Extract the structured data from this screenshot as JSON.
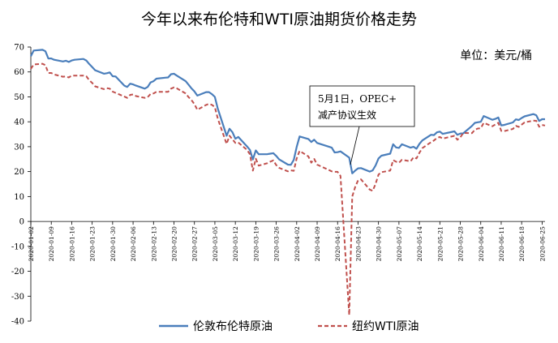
{
  "chart_data": {
    "type": "line",
    "title": "今年以来布伦特和WTI原油期货价格走势",
    "unit_label": "单位：美元/桶",
    "annotation": [
      "5月1日，OPEC+",
      "减产协议生效"
    ],
    "ylim": [
      -40,
      70
    ],
    "yticks": [
      70,
      60,
      50,
      40,
      30,
      20,
      10,
      0,
      -10,
      -20,
      -30,
      -40
    ],
    "x_tick_labels": [
      "2020-01-02",
      "2020-01-09",
      "2020-01-16",
      "2020-01-23",
      "2020-01-30",
      "2020-02-06",
      "2020-02-13",
      "2020-02-20",
      "2020-02-27",
      "2020-03-05",
      "2020-03-12",
      "2020-03-19",
      "2020-03-26",
      "2020-04-02",
      "2020-04-09",
      "2020-04-16",
      "2020-04-23",
      "2020-04-30",
      "2020-05-07",
      "2020-05-14",
      "2020-05-21",
      "2020-05-28",
      "2020-06-04",
      "2020-06-11",
      "2020-06-18",
      "2020-06-25"
    ],
    "grid": false,
    "legend_position": "bottom",
    "colors": {
      "brent": "#4A7EBB",
      "wti": "#C0504D"
    },
    "series": [
      {
        "name": "伦敦布伦特原油",
        "points": [
          [
            "2020-01-02",
            66.3
          ],
          [
            "2020-01-03",
            68.6
          ],
          [
            "2020-01-06",
            68.9
          ],
          [
            "2020-01-07",
            68.3
          ],
          [
            "2020-01-08",
            65.4
          ],
          [
            "2020-01-09",
            65.4
          ],
          [
            "2020-01-10",
            64.9
          ],
          [
            "2020-01-13",
            64.2
          ],
          [
            "2020-01-14",
            64.5
          ],
          [
            "2020-01-15",
            64.0
          ],
          [
            "2020-01-16",
            64.6
          ],
          [
            "2020-01-17",
            64.9
          ],
          [
            "2020-01-20",
            65.2
          ],
          [
            "2020-01-21",
            64.6
          ],
          [
            "2020-01-22",
            63.2
          ],
          [
            "2020-01-23",
            62.0
          ],
          [
            "2020-01-24",
            60.7
          ],
          [
            "2020-01-27",
            59.3
          ],
          [
            "2020-01-28",
            59.5
          ],
          [
            "2020-01-29",
            59.8
          ],
          [
            "2020-01-30",
            58.3
          ],
          [
            "2020-01-31",
            58.2
          ],
          [
            "2020-02-03",
            54.5
          ],
          [
            "2020-02-04",
            54.0
          ],
          [
            "2020-02-05",
            55.3
          ],
          [
            "2020-02-06",
            55.0
          ],
          [
            "2020-02-07",
            54.5
          ],
          [
            "2020-02-10",
            53.3
          ],
          [
            "2020-02-11",
            54.0
          ],
          [
            "2020-02-12",
            55.8
          ],
          [
            "2020-02-13",
            56.3
          ],
          [
            "2020-02-14",
            57.3
          ],
          [
            "2020-02-17",
            57.7
          ],
          [
            "2020-02-18",
            57.8
          ],
          [
            "2020-02-19",
            59.1
          ],
          [
            "2020-02-20",
            59.3
          ],
          [
            "2020-02-21",
            58.5
          ],
          [
            "2020-02-24",
            56.3
          ],
          [
            "2020-02-25",
            54.9
          ],
          [
            "2020-02-26",
            53.4
          ],
          [
            "2020-02-27",
            52.2
          ],
          [
            "2020-02-28",
            50.5
          ],
          [
            "2020-03-02",
            51.9
          ],
          [
            "2020-03-03",
            51.9
          ],
          [
            "2020-03-04",
            51.1
          ],
          [
            "2020-03-05",
            49.99
          ],
          [
            "2020-03-06",
            45.3
          ],
          [
            "2020-03-09",
            34.4
          ],
          [
            "2020-03-10",
            37.2
          ],
          [
            "2020-03-11",
            35.8
          ],
          [
            "2020-03-12",
            33.2
          ],
          [
            "2020-03-13",
            33.9
          ],
          [
            "2020-03-16",
            30.1
          ],
          [
            "2020-03-17",
            28.7
          ],
          [
            "2020-03-18",
            24.9
          ],
          [
            "2020-03-19",
            28.5
          ],
          [
            "2020-03-20",
            26.98
          ],
          [
            "2020-03-23",
            27.0
          ],
          [
            "2020-03-24",
            27.2
          ],
          [
            "2020-03-25",
            27.4
          ],
          [
            "2020-03-26",
            26.3
          ],
          [
            "2020-03-27",
            24.9
          ],
          [
            "2020-03-30",
            22.8
          ],
          [
            "2020-03-31",
            22.7
          ],
          [
            "2020-04-01",
            24.7
          ],
          [
            "2020-04-02",
            29.9
          ],
          [
            "2020-04-03",
            34.1
          ],
          [
            "2020-04-06",
            33.1
          ],
          [
            "2020-04-07",
            31.9
          ],
          [
            "2020-04-08",
            32.8
          ],
          [
            "2020-04-09",
            31.5
          ],
          [
            "2020-04-14",
            29.6
          ],
          [
            "2020-04-15",
            27.7
          ],
          [
            "2020-04-16",
            27.8
          ],
          [
            "2020-04-17",
            28.1
          ],
          [
            "2020-04-20",
            25.6
          ],
          [
            "2020-04-21",
            19.3
          ],
          [
            "2020-04-22",
            20.4
          ],
          [
            "2020-04-23",
            21.3
          ],
          [
            "2020-04-24",
            21.4
          ],
          [
            "2020-04-27",
            20.0
          ],
          [
            "2020-04-28",
            20.5
          ],
          [
            "2020-04-29",
            22.5
          ],
          [
            "2020-04-30",
            25.3
          ],
          [
            "2020-05-01",
            26.4
          ],
          [
            "2020-05-04",
            27.2
          ],
          [
            "2020-05-05",
            30.97
          ],
          [
            "2020-05-06",
            29.7
          ],
          [
            "2020-05-07",
            29.5
          ],
          [
            "2020-05-08",
            30.97
          ],
          [
            "2020-05-11",
            29.6
          ],
          [
            "2020-05-12",
            29.98
          ],
          [
            "2020-05-13",
            29.2
          ],
          [
            "2020-05-14",
            31.1
          ],
          [
            "2020-05-15",
            32.5
          ],
          [
            "2020-05-18",
            34.8
          ],
          [
            "2020-05-19",
            34.65
          ],
          [
            "2020-05-20",
            35.75
          ],
          [
            "2020-05-21",
            36.06
          ],
          [
            "2020-05-22",
            35.13
          ],
          [
            "2020-05-26",
            36.17
          ],
          [
            "2020-05-27",
            34.74
          ],
          [
            "2020-05-28",
            35.29
          ],
          [
            "2020-05-29",
            35.33
          ],
          [
            "2020-06-01",
            38.32
          ],
          [
            "2020-06-02",
            39.57
          ],
          [
            "2020-06-03",
            39.79
          ],
          [
            "2020-06-04",
            39.99
          ],
          [
            "2020-06-05",
            42.3
          ],
          [
            "2020-06-08",
            40.8
          ],
          [
            "2020-06-09",
            41.18
          ],
          [
            "2020-06-10",
            41.73
          ],
          [
            "2020-06-11",
            38.55
          ],
          [
            "2020-06-12",
            38.73
          ],
          [
            "2020-06-15",
            39.72
          ],
          [
            "2020-06-16",
            40.96
          ],
          [
            "2020-06-17",
            40.71
          ],
          [
            "2020-06-18",
            41.51
          ],
          [
            "2020-06-19",
            42.19
          ],
          [
            "2020-06-22",
            43.08
          ],
          [
            "2020-06-23",
            42.63
          ],
          [
            "2020-06-24",
            40.31
          ],
          [
            "2020-06-25",
            41.05
          ],
          [
            "2020-06-26",
            41.02
          ]
        ]
      },
      {
        "name": "纽约WTI原油",
        "points": [
          [
            "2020-01-02",
            61.2
          ],
          [
            "2020-01-03",
            63.0
          ],
          [
            "2020-01-06",
            63.3
          ],
          [
            "2020-01-07",
            62.7
          ],
          [
            "2020-01-08",
            59.6
          ],
          [
            "2020-01-09",
            59.6
          ],
          [
            "2020-01-10",
            59.0
          ],
          [
            "2020-01-13",
            58.1
          ],
          [
            "2020-01-14",
            58.2
          ],
          [
            "2020-01-15",
            57.8
          ],
          [
            "2020-01-16",
            58.5
          ],
          [
            "2020-01-17",
            58.5
          ],
          [
            "2020-01-20",
            58.5
          ],
          [
            "2020-01-21",
            58.3
          ],
          [
            "2020-01-22",
            56.7
          ],
          [
            "2020-01-23",
            55.6
          ],
          [
            "2020-01-24",
            54.2
          ],
          [
            "2020-01-27",
            53.1
          ],
          [
            "2020-01-28",
            53.5
          ],
          [
            "2020-01-29",
            53.3
          ],
          [
            "2020-01-30",
            52.1
          ],
          [
            "2020-01-31",
            51.6
          ],
          [
            "2020-02-03",
            50.1
          ],
          [
            "2020-02-04",
            49.6
          ],
          [
            "2020-02-05",
            50.8
          ],
          [
            "2020-02-06",
            50.95
          ],
          [
            "2020-02-07",
            50.3
          ],
          [
            "2020-02-10",
            49.6
          ],
          [
            "2020-02-11",
            49.9
          ],
          [
            "2020-02-12",
            51.2
          ],
          [
            "2020-02-13",
            51.4
          ],
          [
            "2020-02-14",
            52.05
          ],
          [
            "2020-02-17",
            52.05
          ],
          [
            "2020-02-18",
            52.05
          ],
          [
            "2020-02-19",
            53.3
          ],
          [
            "2020-02-20",
            53.8
          ],
          [
            "2020-02-21",
            53.4
          ],
          [
            "2020-02-24",
            51.4
          ],
          [
            "2020-02-25",
            49.9
          ],
          [
            "2020-02-26",
            48.7
          ],
          [
            "2020-02-27",
            47.1
          ],
          [
            "2020-02-28",
            44.8
          ],
          [
            "2020-03-02",
            46.75
          ],
          [
            "2020-03-03",
            47.2
          ],
          [
            "2020-03-04",
            46.8
          ],
          [
            "2020-03-05",
            45.9
          ],
          [
            "2020-03-06",
            41.3
          ],
          [
            "2020-03-09",
            31.1
          ],
          [
            "2020-03-10",
            34.4
          ],
          [
            "2020-03-11",
            32.98
          ],
          [
            "2020-03-12",
            31.5
          ],
          [
            "2020-03-13",
            31.7
          ],
          [
            "2020-03-16",
            28.7
          ],
          [
            "2020-03-17",
            26.95
          ],
          [
            "2020-03-18",
            20.4
          ],
          [
            "2020-03-19",
            25.2
          ],
          [
            "2020-03-20",
            22.4
          ],
          [
            "2020-03-23",
            23.4
          ],
          [
            "2020-03-24",
            24.0
          ],
          [
            "2020-03-25",
            24.5
          ],
          [
            "2020-03-26",
            22.6
          ],
          [
            "2020-03-27",
            21.5
          ],
          [
            "2020-03-30",
            20.1
          ],
          [
            "2020-03-31",
            20.5
          ],
          [
            "2020-04-01",
            20.3
          ],
          [
            "2020-04-02",
            25.3
          ],
          [
            "2020-04-03",
            28.3
          ],
          [
            "2020-04-06",
            26.1
          ],
          [
            "2020-04-07",
            23.6
          ],
          [
            "2020-04-08",
            25.1
          ],
          [
            "2020-04-09",
            22.8
          ],
          [
            "2020-04-14",
            20.1
          ],
          [
            "2020-04-15",
            19.9
          ],
          [
            "2020-04-16",
            19.9
          ],
          [
            "2020-04-17",
            18.3
          ],
          [
            "2020-04-20",
            -37.6
          ],
          [
            "2020-04-21",
            10.0
          ],
          [
            "2020-04-22",
            13.8
          ],
          [
            "2020-04-23",
            16.5
          ],
          [
            "2020-04-24",
            16.9
          ],
          [
            "2020-04-27",
            12.8
          ],
          [
            "2020-04-28",
            12.3
          ],
          [
            "2020-04-29",
            15.1
          ],
          [
            "2020-04-30",
            18.8
          ],
          [
            "2020-05-01",
            19.8
          ],
          [
            "2020-05-04",
            20.4
          ],
          [
            "2020-05-05",
            24.6
          ],
          [
            "2020-05-06",
            23.99
          ],
          [
            "2020-05-07",
            23.55
          ],
          [
            "2020-05-08",
            24.74
          ],
          [
            "2020-05-11",
            24.14
          ],
          [
            "2020-05-12",
            25.78
          ],
          [
            "2020-05-13",
            25.29
          ],
          [
            "2020-05-14",
            27.56
          ],
          [
            "2020-05-15",
            29.43
          ],
          [
            "2020-05-18",
            31.82
          ],
          [
            "2020-05-19",
            32.5
          ],
          [
            "2020-05-20",
            33.49
          ],
          [
            "2020-05-21",
            33.92
          ],
          [
            "2020-05-22",
            33.25
          ],
          [
            "2020-05-26",
            34.35
          ],
          [
            "2020-05-27",
            32.81
          ],
          [
            "2020-05-28",
            33.71
          ],
          [
            "2020-05-29",
            35.49
          ],
          [
            "2020-06-01",
            35.44
          ],
          [
            "2020-06-02",
            36.81
          ],
          [
            "2020-06-03",
            37.29
          ],
          [
            "2020-06-04",
            37.41
          ],
          [
            "2020-06-05",
            39.55
          ],
          [
            "2020-06-08",
            38.19
          ],
          [
            "2020-06-09",
            38.94
          ],
          [
            "2020-06-10",
            39.6
          ],
          [
            "2020-06-11",
            36.34
          ],
          [
            "2020-06-12",
            36.26
          ],
          [
            "2020-06-15",
            37.12
          ],
          [
            "2020-06-16",
            38.38
          ],
          [
            "2020-06-17",
            37.96
          ],
          [
            "2020-06-18",
            38.84
          ],
          [
            "2020-06-19",
            39.75
          ],
          [
            "2020-06-22",
            40.46
          ],
          [
            "2020-06-23",
            40.37
          ],
          [
            "2020-06-24",
            38.01
          ],
          [
            "2020-06-25",
            38.72
          ],
          [
            "2020-06-26",
            38.49
          ]
        ]
      }
    ]
  }
}
